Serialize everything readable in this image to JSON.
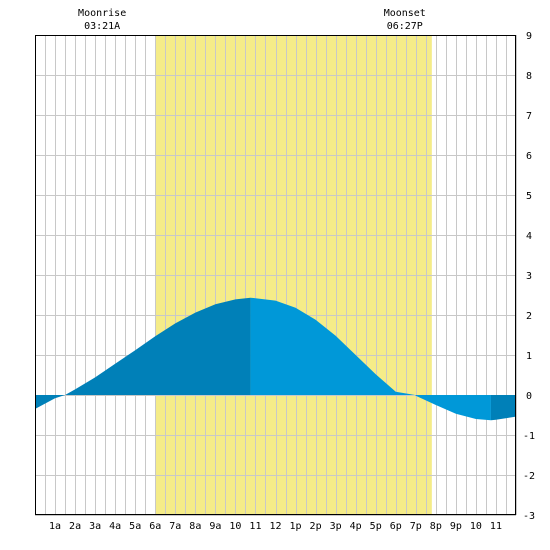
{
  "moon_labels": {
    "moonrise_title": "Moonrise",
    "moonrise_time": "03:21A",
    "moonset_title": "Moonset",
    "moonset_time": "06:27P"
  },
  "colors": {
    "background": "#ffffff",
    "grid": "#c8c8c8",
    "frame": "#000000",
    "daylight": "#f5ec88",
    "tide_fill": "#0098d8",
    "tide_fill_dark": "#0080b8"
  },
  "chart_data": {
    "type": "area",
    "title": "",
    "xlabel": "",
    "ylabel": "",
    "xlim": [
      0,
      24
    ],
    "ylim": [
      -3,
      9
    ],
    "y_ticks": [
      -3,
      -2,
      -1,
      0,
      1,
      2,
      3,
      4,
      5,
      6,
      7,
      8,
      9
    ],
    "x_tick_labels": [
      "1a",
      "2a",
      "3a",
      "4a",
      "5a",
      "6a",
      "7a",
      "8a",
      "9a",
      "10",
      "11",
      "12",
      "1p",
      "2p",
      "3p",
      "4p",
      "5p",
      "6p",
      "7p",
      "8p",
      "9p",
      "10",
      "11"
    ],
    "x_tick_hours": [
      1,
      2,
      3,
      4,
      5,
      6,
      7,
      8,
      9,
      10,
      11,
      12,
      13,
      14,
      15,
      16,
      17,
      18,
      19,
      20,
      21,
      22,
      23
    ],
    "daylight_hours": [
      6.0,
      19.8
    ],
    "moonrise_hour": 3.35,
    "moonset_hour": 18.45,
    "grid": true,
    "series": [
      {
        "x": [
          0,
          1,
          1.5,
          2,
          3,
          4,
          5,
          6,
          7,
          8,
          9,
          10,
          10.75,
          11,
          12,
          13,
          14,
          15,
          16,
          17,
          18,
          18.97,
          19,
          20,
          21,
          22,
          22.75,
          23,
          24
        ],
        "y": [
          -0.35,
          -0.08,
          0.0,
          0.14,
          0.44,
          0.78,
          1.12,
          1.47,
          1.79,
          2.06,
          2.27,
          2.39,
          2.43,
          2.42,
          2.36,
          2.18,
          1.88,
          1.48,
          1.0,
          0.52,
          0.08,
          0.0,
          -0.02,
          -0.25,
          -0.47,
          -0.6,
          -0.63,
          -0.62,
          -0.54
        ]
      }
    ],
    "tide_extremes": [
      {
        "type": "high",
        "hour": 10.75,
        "value": 2.43
      },
      {
        "type": "low",
        "hour": 22.75,
        "value": -0.63
      }
    ]
  }
}
